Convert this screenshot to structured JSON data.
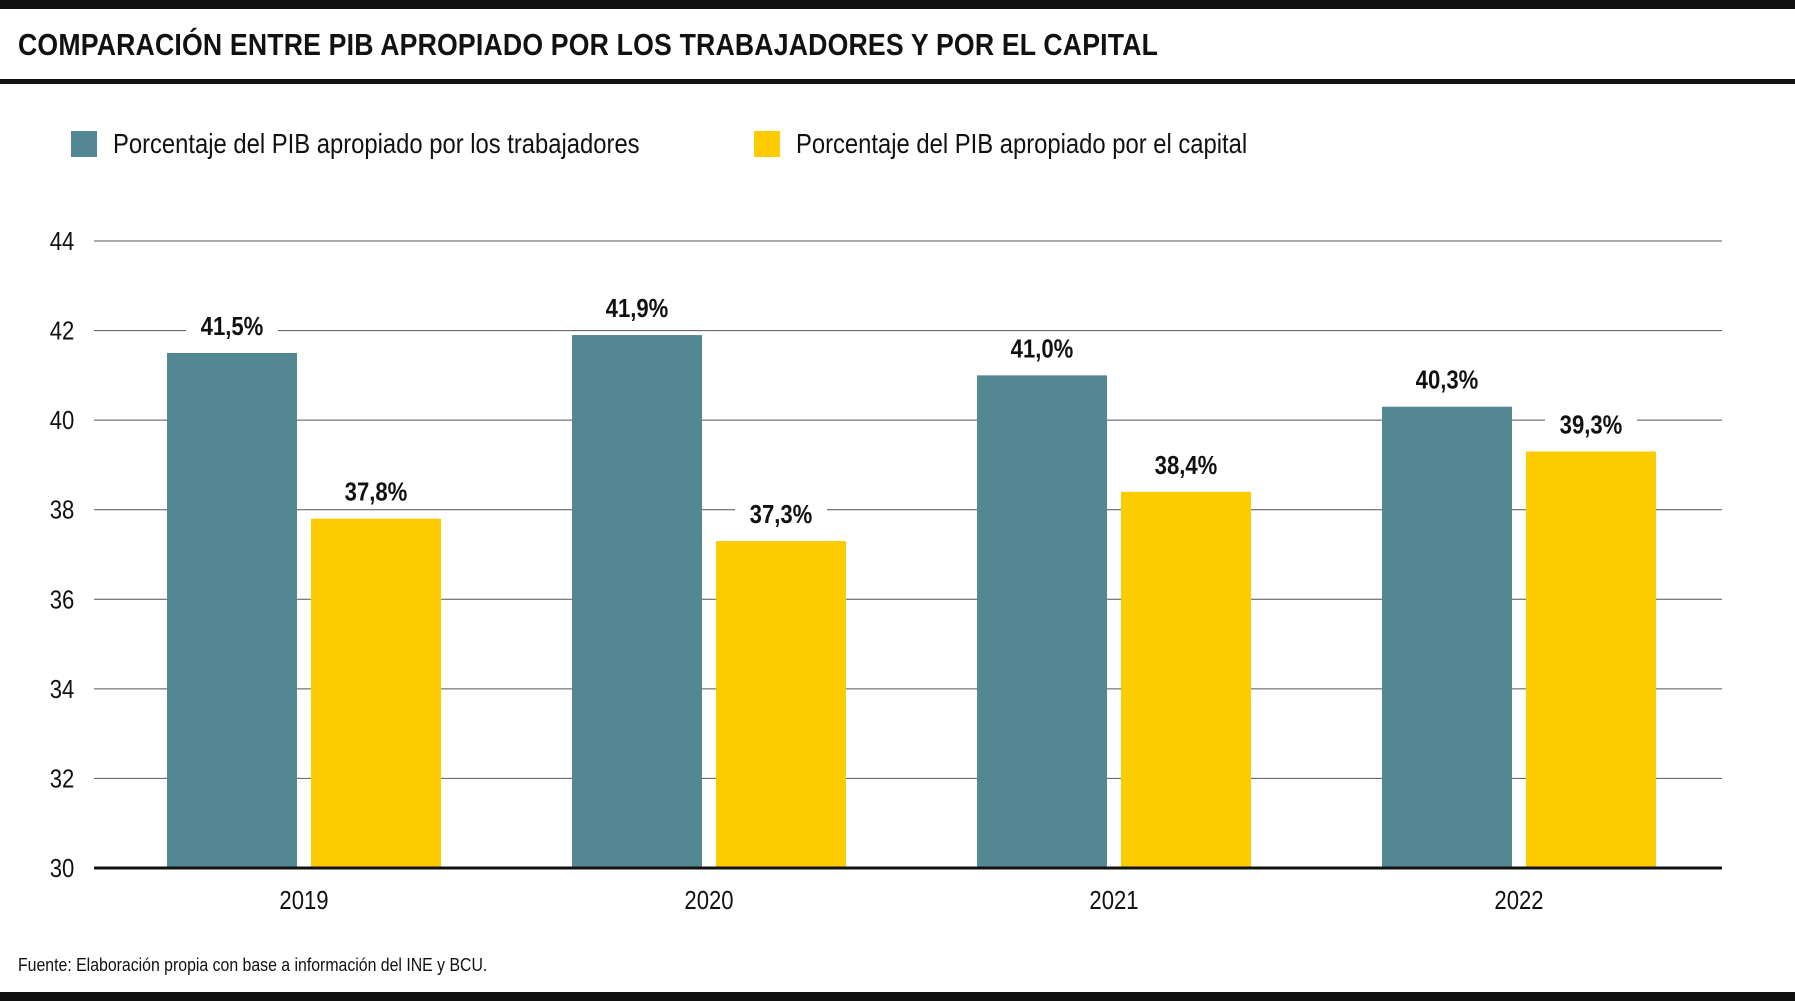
{
  "title": "COMPARACIÓN ENTRE PIB APROPIADO POR LOS TRABAJADORES Y POR EL CAPITAL",
  "legend": [
    {
      "label": "Porcentaje del PIB apropiado por los trabajadores",
      "color": "#548794"
    },
    {
      "label": "Porcentaje del PIB apropiado por el capital",
      "color": "#fccb00"
    }
  ],
  "source": "Fuente: Elaboración propia con base a información del INE y BCU.",
  "chart_data": {
    "type": "bar",
    "title": "COMPARACIÓN ENTRE PIB APROPIADO POR LOS TRABAJADORES Y POR EL CAPITAL",
    "xlabel": "",
    "ylabel": "",
    "categories": [
      "2019",
      "2020",
      "2021",
      "2022"
    ],
    "series": [
      {
        "name": "Porcentaje del PIB apropiado por los trabajadores",
        "color": "#548794",
        "values": [
          41.5,
          41.9,
          41.0,
          40.3
        ],
        "labels": [
          "41,5%",
          "41,9%",
          "41,0%",
          "40,3%"
        ]
      },
      {
        "name": "Porcentaje del PIB apropiado por el capital",
        "color": "#fccb00",
        "values": [
          37.8,
          37.3,
          38.4,
          39.3
        ],
        "labels": [
          "37,8%",
          "37,3%",
          "38,4%",
          "39,3%"
        ]
      }
    ],
    "ylim": [
      30,
      44
    ],
    "yticks": [
      30,
      32,
      34,
      36,
      38,
      40,
      42,
      44
    ],
    "grid": true,
    "legend_position": "top-left"
  }
}
